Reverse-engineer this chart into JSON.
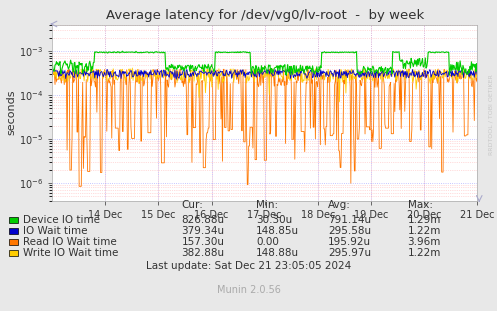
{
  "title": "Average latency for /dev/vg0/lv-root  -  by week",
  "ylabel": "seconds",
  "background_color": "#e8e8e8",
  "plot_bg_color": "#ffffff",
  "grid_color_minor": "#ffaaaa",
  "grid_color_major": "#aaaaff",
  "x_labels": [
    "14 Dec",
    "15 Dec",
    "16 Dec",
    "17 Dec",
    "18 Dec",
    "19 Dec",
    "20 Dec",
    "21 Dec"
  ],
  "y_ticks": [
    1e-06,
    1e-05,
    0.0001,
    0.001
  ],
  "legend_entries": [
    "Device IO time",
    "IO Wait time",
    "Read IO Wait time",
    "Write IO Wait time"
  ],
  "legend_colors": [
    "#00cc00",
    "#0000cc",
    "#ff7700",
    "#ffcc00"
  ],
  "table_headers": [
    "Cur:",
    "Min:",
    "Avg:",
    "Max:"
  ],
  "table_data": [
    [
      "826.88u",
      "30.30u",
      "791.14u",
      "1.29m"
    ],
    [
      "379.34u",
      "148.85u",
      "295.58u",
      "1.22m"
    ],
    [
      "157.30u",
      "0.00",
      "195.92u",
      "3.96m"
    ],
    [
      "382.88u",
      "148.88u",
      "295.97u",
      "1.22m"
    ]
  ],
  "last_update": "Last update: Sat Dec 21 23:05:05 2024",
  "munin_version": "Munin 2.0.56",
  "watermark": "RRDTOOL / TOBI OETIKER",
  "n_points": 600,
  "ylim_low": 4e-07,
  "ylim_high": 0.004
}
